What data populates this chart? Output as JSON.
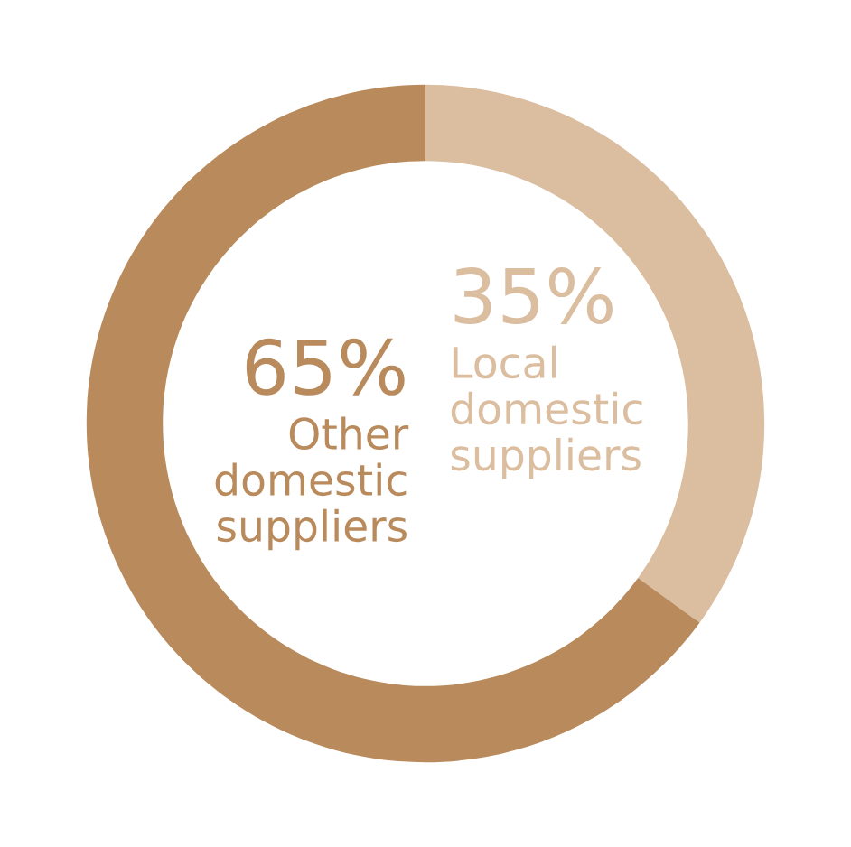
{
  "chart_data": {
    "type": "donut",
    "categories": [
      "Local domestic suppliers",
      "Other domestic suppliers"
    ],
    "values": [
      35,
      65
    ],
    "value_labels": [
      "35%",
      "65%"
    ],
    "colors": [
      "#dbbd9f",
      "#b98a5b"
    ]
  }
}
